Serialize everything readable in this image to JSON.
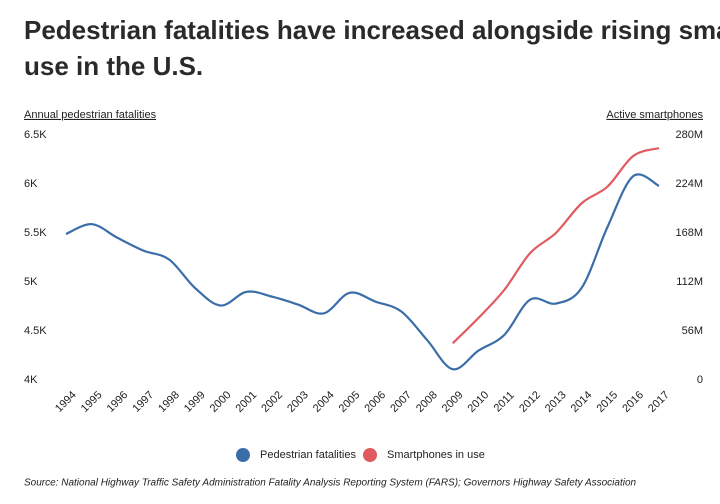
{
  "chart_data": {
    "type": "line",
    "title": "Pedestrian fatalities have increased alongside rising smartphone use in the U.S.",
    "y_label": "Annual pedestrian fatalities",
    "y2_label": "Active smartphones",
    "categories": [
      "1994",
      "1995",
      "1996",
      "1997",
      "1998",
      "1999",
      "2000",
      "2001",
      "2002",
      "2003",
      "2004",
      "2005",
      "2006",
      "2007",
      "2008",
      "2009",
      "2010",
      "2011",
      "2012",
      "2013",
      "2014",
      "2015",
      "2016",
      "2017"
    ],
    "series": [
      {
        "name": "Pedestrian fatalities",
        "color": "#3b6ea8",
        "values": [
          5490,
          5590,
          5450,
          5320,
          5230,
          4940,
          4760,
          4900,
          4850,
          4770,
          4680,
          4890,
          4800,
          4700,
          4410,
          4110,
          4300,
          4460,
          4820,
          4780,
          4940,
          5560,
          6080,
          5980
        ]
      },
      {
        "name": "Smartphones in use",
        "color": "#e05a5f",
        "axis": "y2",
        "values": [
          null,
          null,
          null,
          null,
          null,
          null,
          null,
          null,
          null,
          null,
          null,
          null,
          null,
          null,
          null,
          42000000,
          71000000,
          103000000,
          145000000,
          168000000,
          202000000,
          221000000,
          256000000,
          265000000
        ]
      }
    ],
    "ylim": [
      4000,
      6500
    ],
    "yticks": [
      {
        "value": 4000,
        "label": "4K"
      },
      {
        "value": 4500,
        "label": "4.5K"
      },
      {
        "value": 5000,
        "label": "5K"
      },
      {
        "value": 5500,
        "label": "5.5K"
      },
      {
        "value": 6000,
        "label": "6K"
      },
      {
        "value": 6500,
        "label": "6.5K"
      }
    ],
    "y2lim": [
      0,
      280000000
    ],
    "y2ticks": [
      0,
      {
        "value": 56000000,
        "label": "56M"
      },
      {
        "value": 112000000,
        "label": "112M"
      },
      {
        "value": 168000000,
        "label": "168M"
      },
      {
        "value": 224000000,
        "label": "224M"
      },
      {
        "value": 280000000,
        "label": "280M"
      }
    ],
    "grid": false,
    "legend": "bottom",
    "source": "Source: National Highway Traffic Safety Administration Fatality Analysis Reporting System (FARS); Governors Highway Safety Association"
  }
}
